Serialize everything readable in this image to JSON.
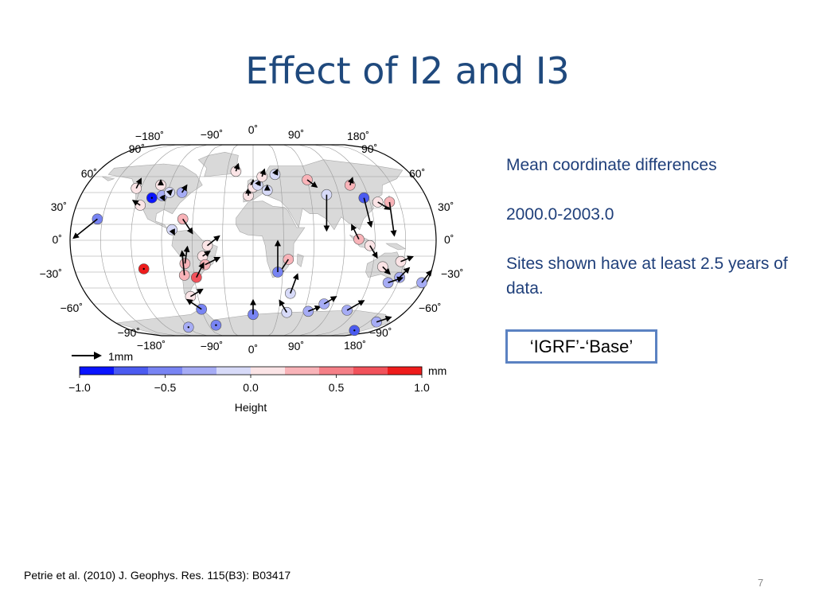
{
  "title": "Effect of I2 and I3",
  "notes": {
    "line1": "Mean coordinate differences",
    "line2": "2000.0-2003.0",
    "line3": "Sites shown have at least 2.5 years of data."
  },
  "box_label": "‘IGRF’-‘Base’",
  "citation": "Petrie et al. (2010) J. Geophys. Res. 115(B3): B03417",
  "page_number": "7",
  "map": {
    "projection": "Winkel tripel",
    "lon_labels_top": [
      "−180˚",
      "−90˚",
      "0˚",
      "90˚",
      "180˚"
    ],
    "lon_labels_bottom": [
      "−180˚",
      "−90˚",
      "0˚",
      "90˚",
      "180˚"
    ],
    "lat_labels_left": [
      "90˚",
      "60˚",
      "30˚",
      "0˚",
      "−30˚",
      "−60˚",
      "−90˚"
    ],
    "lat_labels_right": [
      "90˚",
      "60˚",
      "30˚",
      "0˚",
      "−30˚",
      "−60˚",
      "−90˚"
    ],
    "arrow_scale_label": "1mm",
    "sites": [
      {
        "lon": -125,
        "lat": 49,
        "h": 0.15,
        "dx": 0.2,
        "dy": 0.4
      },
      {
        "lon": -105,
        "lat": 40,
        "h": -0.8,
        "dx": 0.0,
        "dy": 0.0
      },
      {
        "lon": -95,
        "lat": 42,
        "h": -0.3,
        "dx": 0.1,
        "dy": -0.2
      },
      {
        "lon": -88,
        "lat": 45,
        "h": -0.2,
        "dx": 0.1,
        "dy": 0.1
      },
      {
        "lon": -100,
        "lat": 52,
        "h": 0.1,
        "dx": 0.0,
        "dy": 0.2
      },
      {
        "lon": -75,
        "lat": 45,
        "h": -0.25,
        "dx": 0.2,
        "dy": 0.3
      },
      {
        "lon": -115,
        "lat": 33,
        "h": 0.1,
        "dx": -0.3,
        "dy": 0.2
      },
      {
        "lon": -155,
        "lat": 20,
        "h": -0.45,
        "dx": -1.0,
        "dy": -0.8
      },
      {
        "lon": -70,
        "lat": 20,
        "h": 0.3,
        "dx": 0.4,
        "dy": -0.6
      },
      {
        "lon": -80,
        "lat": 10,
        "h": -0.2,
        "dx": 0.1,
        "dy": -0.2
      },
      {
        "lon": -45,
        "lat": -5,
        "h": 0.0,
        "dx": 0.5,
        "dy": 0.4
      },
      {
        "lon": -50,
        "lat": -15,
        "h": 0.15,
        "dx": 0.3,
        "dy": 0.2
      },
      {
        "lon": -68,
        "lat": -22,
        "h": 0.25,
        "dx": 0.1,
        "dy": 0.7
      },
      {
        "lon": -48,
        "lat": -23,
        "h": 0.3,
        "dx": 0.6,
        "dy": 0.3
      },
      {
        "lon": -70,
        "lat": -33,
        "h": 0.35,
        "dx": -0.1,
        "dy": 1.0
      },
      {
        "lon": -58,
        "lat": -35,
        "h": 0.6,
        "dx": 0.3,
        "dy": 0.6
      },
      {
        "lon": -68,
        "lat": -53,
        "h": 0.1,
        "dx": 0.5,
        "dy": 0.3
      },
      {
        "lon": -110,
        "lat": -27,
        "h": 1.0,
        "dx": 0.0,
        "dy": 0.0
      },
      {
        "lon": -60,
        "lat": -65,
        "h": -0.5,
        "dx": -0.6,
        "dy": 0.4
      },
      {
        "lon": -20,
        "lat": 65,
        "h": 0.15,
        "dx": 0.1,
        "dy": 0.3
      },
      {
        "lon": -5,
        "lat": 42,
        "h": 0.1,
        "dx": 0.0,
        "dy": 0.3
      },
      {
        "lon": 0,
        "lat": 50,
        "h": 0.1,
        "dx": 0.0,
        "dy": 0.3
      },
      {
        "lon": 5,
        "lat": 52,
        "h": -0.1,
        "dx": 0.1,
        "dy": 0.2
      },
      {
        "lon": 15,
        "lat": 47,
        "h": -0.15,
        "dx": 0.0,
        "dy": 0.2
      },
      {
        "lon": 10,
        "lat": 60,
        "h": 0.1,
        "dx": 0.1,
        "dy": 0.3
      },
      {
        "lon": 25,
        "lat": 62,
        "h": -0.2,
        "dx": 0.1,
        "dy": 0.2
      },
      {
        "lon": 35,
        "lat": -18,
        "h": 0.3,
        "dx": -0.4,
        "dy": -0.6
      },
      {
        "lon": 25,
        "lat": -30,
        "h": -0.6,
        "dx": 0.0,
        "dy": 1.3
      },
      {
        "lon": 60,
        "lat": 57,
        "h": 0.35,
        "dx": 0.4,
        "dy": -0.3
      },
      {
        "lon": 77,
        "lat": 43,
        "h": -0.2,
        "dx": 0.0,
        "dy": -1.5
      },
      {
        "lon": 105,
        "lat": 52,
        "h": 0.2,
        "dx": 0.1,
        "dy": 0.3
      },
      {
        "lon": 115,
        "lat": 40,
        "h": -0.7,
        "dx": 0.3,
        "dy": -1.2
      },
      {
        "lon": 128,
        "lat": 36,
        "h": 0.0,
        "dx": 0.5,
        "dy": -0.3
      },
      {
        "lon": 140,
        "lat": 36,
        "h": 0.3,
        "dx": 0.2,
        "dy": -1.4
      },
      {
        "lon": 104,
        "lat": 1,
        "h": 0.25,
        "dx": -0.3,
        "dy": 0.6
      },
      {
        "lon": 115,
        "lat": -5,
        "h": 0.05,
        "dx": 0.3,
        "dy": -0.5
      },
      {
        "lon": 147,
        "lat": -20,
        "h": 0.0,
        "dx": 0.5,
        "dy": 0.2
      },
      {
        "lon": 130,
        "lat": -25,
        "h": 0.15,
        "dx": 0.3,
        "dy": -0.3
      },
      {
        "lon": 150,
        "lat": -35,
        "h": -0.3,
        "dx": 0.4,
        "dy": 0.4
      },
      {
        "lon": 140,
        "lat": -40,
        "h": -0.35,
        "dx": 0.6,
        "dy": 0.2
      },
      {
        "lon": 175,
        "lat": -40,
        "h": -0.3,
        "dx": 0.4,
        "dy": 0.5
      },
      {
        "lon": 40,
        "lat": -50,
        "h": -0.2,
        "dx": 0.3,
        "dy": 0.8
      },
      {
        "lon": 0,
        "lat": -70,
        "h": -0.45,
        "dx": 0.0,
        "dy": 0.6
      },
      {
        "lon": 40,
        "lat": -68,
        "h": -0.2,
        "dx": -0.3,
        "dy": 0.5
      },
      {
        "lon": 65,
        "lat": -67,
        "h": -0.4,
        "dx": 0.5,
        "dy": 0.2
      },
      {
        "lon": 80,
        "lat": -60,
        "h": -0.3,
        "dx": 0.5,
        "dy": 0.3
      },
      {
        "lon": 110,
        "lat": -66,
        "h": -0.4,
        "dx": 0.7,
        "dy": 0.4
      },
      {
        "lon": 160,
        "lat": -77,
        "h": -0.35,
        "dx": 0.6,
        "dy": 0.2
      },
      {
        "lon": 150,
        "lat": -85,
        "h": -0.7,
        "dx": 0.0,
        "dy": 0.0
      },
      {
        "lon": -50,
        "lat": -80,
        "h": -0.6,
        "dx": 0.0,
        "dy": 0.0
      },
      {
        "lon": -90,
        "lat": -82,
        "h": -0.4,
        "dx": 0.0,
        "dy": 0.0
      }
    ]
  },
  "colorbar": {
    "label": "Height",
    "unit": "mm",
    "min": -1.0,
    "max": 1.0,
    "tick_labels": [
      "−1.0",
      "−0.5",
      "0.0",
      "0.5",
      "1.0"
    ],
    "colors": [
      "#0a14ff",
      "#4b5bf0",
      "#7884f3",
      "#a6acf5",
      "#d7daf8",
      "#fbe4e6",
      "#f8b3b8",
      "#f47f87",
      "#f1525b",
      "#ee1c1c"
    ]
  }
}
